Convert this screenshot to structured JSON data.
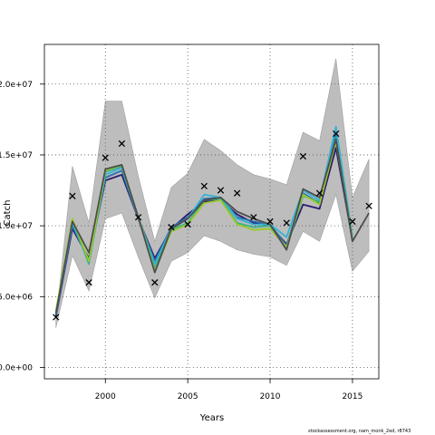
{
  "chart_data": {
    "type": "line",
    "xlabel": "Years",
    "ylabel": "Catch",
    "x_ticks": [
      2000,
      2005,
      2010,
      2015
    ],
    "y_ticks": [
      0,
      5000000,
      10000000,
      15000000,
      20000000
    ],
    "y_tick_labels": [
      "0.0e+00",
      "5.0e+06",
      "1.0e+07",
      "1.5e+07",
      "2.0e+07"
    ],
    "xlim": [
      1996.3,
      2016.6
    ],
    "ylim": [
      -800000,
      22800000
    ],
    "grid": true,
    "x": [
      1997,
      1998,
      1999,
      2000,
      2001,
      2002,
      2003,
      2004,
      2005,
      2006,
      2007,
      2008,
      2009,
      2010,
      2011,
      2012,
      2013,
      2014,
      2015,
      2016
    ],
    "band": {
      "upper": [
        3300000,
        14200000,
        10200000,
        18800000,
        18800000,
        13500000,
        8900000,
        12700000,
        13700000,
        16100000,
        15300000,
        14300000,
        13600000,
        13300000,
        12900000,
        16600000,
        16000000,
        21800000,
        12000000,
        14700000
      ],
      "lower": [
        2800000,
        7900000,
        5400000,
        10500000,
        10900000,
        7800000,
        4900000,
        7500000,
        8100000,
        9300000,
        8900000,
        8300000,
        8000000,
        7800000,
        7200000,
        9600000,
        8900000,
        12200000,
        6800000,
        8200000
      ]
    },
    "series": [
      {
        "color": "#2b1b6e",
        "values": [
          3600000,
          9800000,
          7700000,
          13200000,
          13600000,
          10500000,
          7700000,
          9800000,
          10800000,
          11700000,
          11800000,
          10800000,
          10200000,
          10000000,
          8700000,
          11500000,
          11200000,
          15500000,
          9000000,
          null
        ]
      },
      {
        "color": "#2a6fb0",
        "values": [
          3700000,
          10000000,
          7600000,
          13400000,
          13900000,
          10500000,
          7500000,
          9900000,
          10600000,
          11900000,
          12000000,
          10600000,
          10300000,
          10100000,
          8600000,
          12300000,
          11600000,
          16500000,
          9000000,
          null
        ]
      },
      {
        "color": "#35b2d4",
        "values": [
          3800000,
          10200000,
          7400000,
          13600000,
          14100000,
          10600000,
          7300000,
          9800000,
          10500000,
          12200000,
          12000000,
          10500000,
          10100000,
          10100000,
          9200000,
          12500000,
          11800000,
          17000000,
          9200000,
          null
        ]
      },
      {
        "color": "#39b383",
        "values": [
          3900000,
          10400000,
          7300000,
          13800000,
          14200000,
          10600000,
          7000000,
          9700000,
          10200000,
          11800000,
          11900000,
          10200000,
          9900000,
          10000000,
          8400000,
          12100000,
          11700000,
          16200000,
          9100000,
          null
        ]
      },
      {
        "color": "#9bc92a",
        "values": [
          4000000,
          10500000,
          7500000,
          13900000,
          14300000,
          10600000,
          6800000,
          9600000,
          10100000,
          11600000,
          11800000,
          10100000,
          9700000,
          9800000,
          8500000,
          12200000,
          11500000,
          16000000,
          9000000,
          null
        ]
      },
      {
        "color": "#4d4d4d",
        "values": [
          3800000,
          10300000,
          8100000,
          14000000,
          14300000,
          10600000,
          6700000,
          9800000,
          10500000,
          11800000,
          12000000,
          11000000,
          10500000,
          10100000,
          8300000,
          12600000,
          12000000,
          16100000,
          8900000,
          10900000
        ]
      }
    ],
    "observed": [
      3550000,
      12100000,
      6000000,
      14800000,
      15800000,
      10600000,
      6000000,
      9900000,
      10100000,
      12800000,
      12500000,
      12300000,
      10600000,
      10300000,
      10200000,
      14900000,
      12300000,
      16500000,
      10300000,
      11400000
    ]
  },
  "footer_text": "stockassessment.org, nam_monk_2ed, r8743"
}
